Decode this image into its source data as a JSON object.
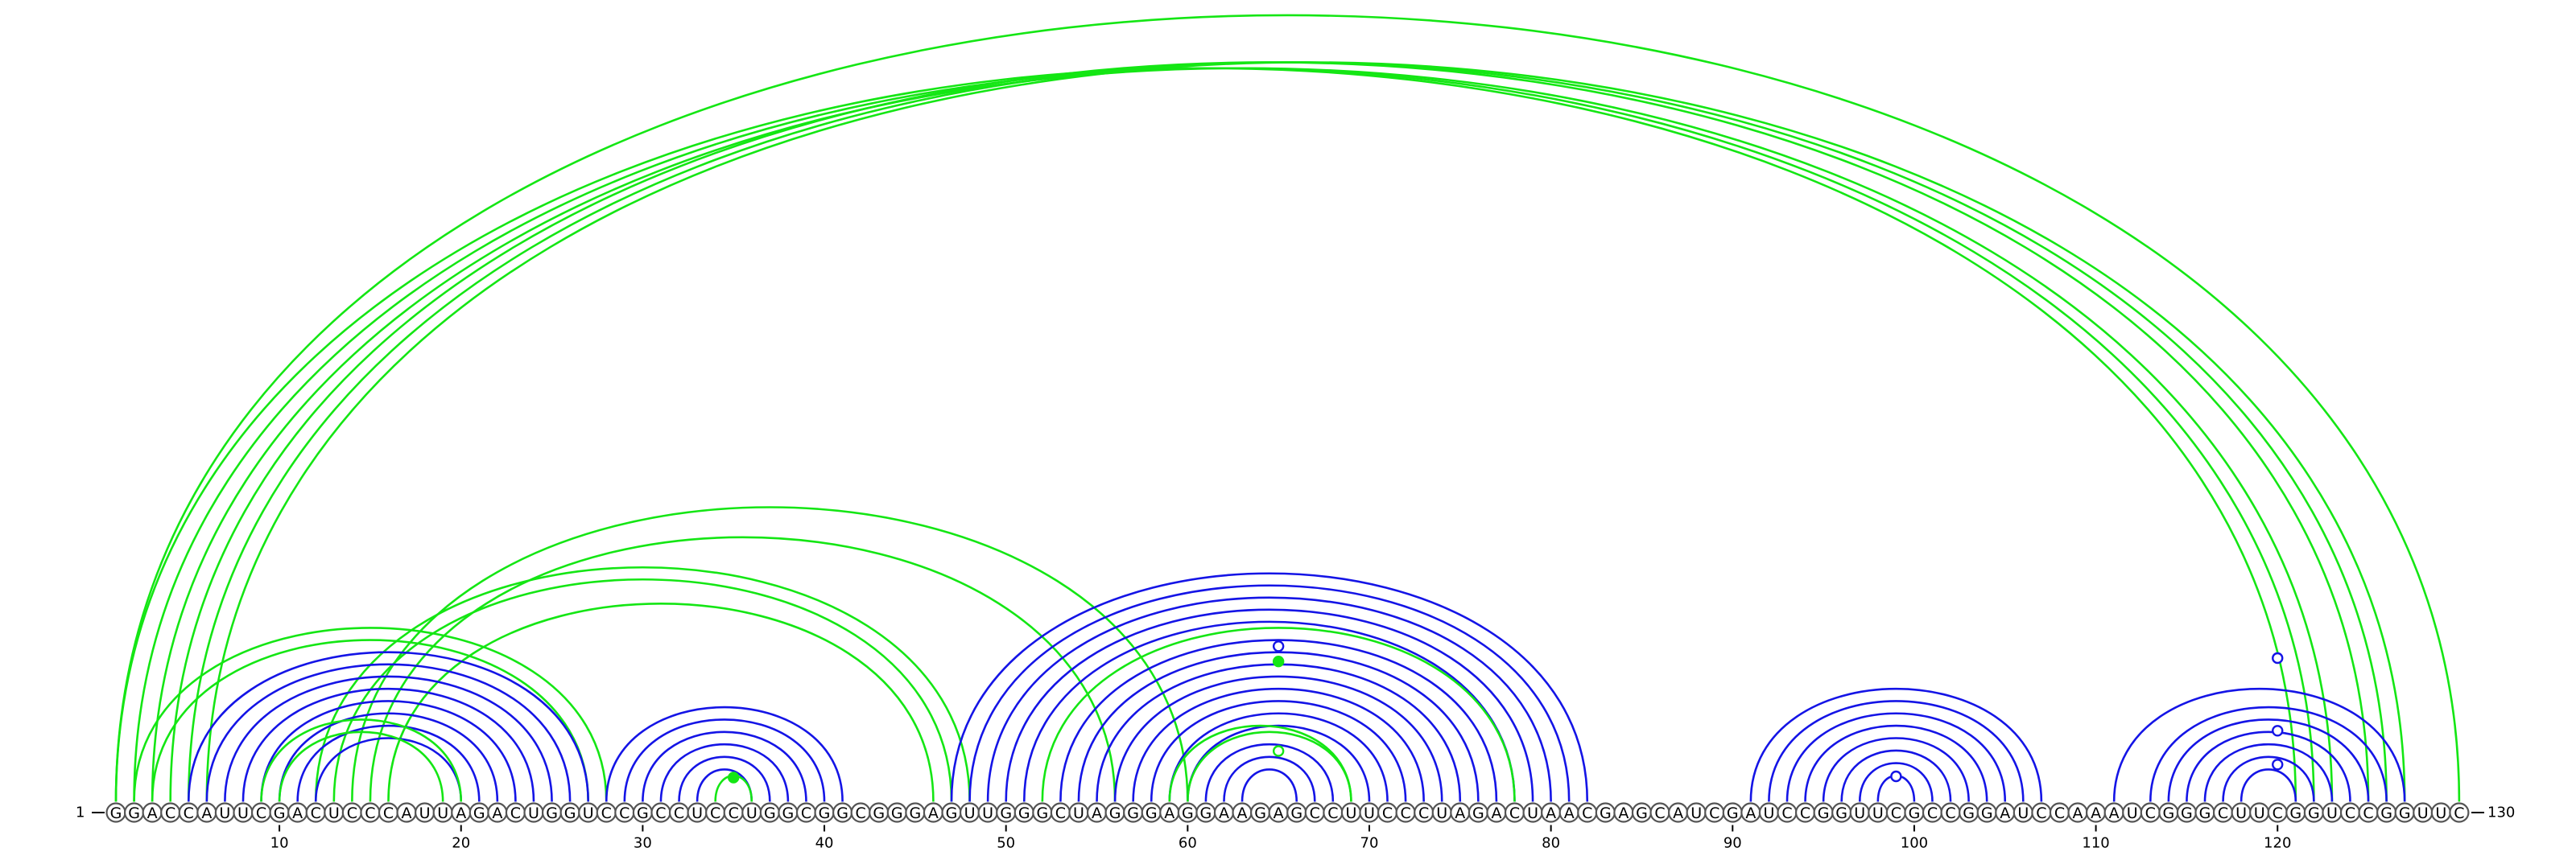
{
  "sequence": "GGACCAUUCGACUCCCAUUAGACUGGUCCGCCUCCUGGCGGCGGGAGUUGGGCUAGGGAGGAAGAGCCUUCCCUAGACUAACGAGCAUCGAUCCGGUUCGCCGGAUCCAAAUCGGGCUUCGGUCCGGUUC",
  "start_label": "1",
  "end_label": "130",
  "ticks": [
    10,
    20,
    30,
    40,
    50,
    60,
    70,
    80,
    90,
    100,
    110,
    120
  ],
  "colors": {
    "blue": "#1414e6",
    "green": "#14e614"
  },
  "arcs": [
    {
      "color": "green",
      "pairs": [
        [
          1,
          121
        ],
        [
          2,
          122
        ],
        [
          3,
          123
        ],
        [
          4,
          125
        ],
        [
          5,
          126
        ],
        [
          6,
          127
        ],
        [
          1,
          130
        ]
      ]
    },
    {
      "color": "green",
      "pairs": [
        [
          2,
          28
        ],
        [
          3,
          27
        ],
        [
          12,
          48
        ],
        [
          13,
          47
        ],
        [
          14,
          60
        ],
        [
          15,
          56
        ],
        [
          16,
          46
        ]
      ]
    },
    {
      "color": "blue",
      "pairs": [
        [
          5,
          27
        ],
        [
          6,
          26
        ],
        [
          7,
          25
        ],
        [
          8,
          24
        ],
        [
          9,
          23
        ],
        [
          10,
          22
        ],
        [
          11,
          21
        ],
        [
          12,
          20
        ]
      ]
    },
    {
      "color": "green",
      "pairs": [
        [
          9,
          20
        ],
        [
          10,
          19
        ]
      ]
    },
    {
      "color": "blue",
      "pairs": [
        [
          28,
          41
        ],
        [
          29,
          40
        ],
        [
          30,
          39
        ],
        [
          31,
          38
        ],
        [
          32,
          37
        ],
        [
          33,
          36
        ]
      ]
    },
    {
      "color": "green",
      "pairs": [
        [
          34,
          36
        ]
      ]
    },
    {
      "color": "blue",
      "pairs": [
        [
          47,
          82
        ],
        [
          48,
          81
        ],
        [
          49,
          80
        ],
        [
          50,
          79
        ],
        [
          51,
          78
        ],
        [
          53,
          77
        ],
        [
          54,
          76
        ],
        [
          55,
          75
        ],
        [
          56,
          74
        ],
        [
          57,
          73
        ],
        [
          58,
          72
        ],
        [
          59,
          71
        ],
        [
          60,
          70
        ],
        [
          61,
          68
        ],
        [
          62,
          67
        ],
        [
          63,
          66
        ]
      ]
    },
    {
      "color": "green",
      "pairs": [
        [
          52,
          78
        ],
        [
          59,
          69
        ],
        [
          60,
          69
        ]
      ]
    },
    {
      "color": "blue",
      "pairs": [
        [
          91,
          107
        ],
        [
          92,
          106
        ],
        [
          93,
          105
        ],
        [
          94,
          104
        ],
        [
          95,
          103
        ],
        [
          96,
          102
        ],
        [
          97,
          101
        ],
        [
          98,
          100
        ]
      ]
    },
    {
      "color": "blue",
      "pairs": [
        [
          111,
          127
        ],
        [
          113,
          126
        ],
        [
          114,
          125
        ],
        [
          115,
          124
        ],
        [
          116,
          123
        ],
        [
          117,
          122
        ],
        [
          118,
          121
        ]
      ]
    }
  ],
  "markers": [
    {
      "color": "blue",
      "pos": 65,
      "level": 0.92,
      "filled": false
    },
    {
      "color": "green",
      "pos": 65,
      "level": 0.83,
      "filled": true
    },
    {
      "color": "green",
      "pos": 65,
      "level": 0.3,
      "filled": false
    },
    {
      "color": "green",
      "pos": 35,
      "level": 0.1,
      "filled": true
    },
    {
      "color": "blue",
      "pos": 99,
      "level": 0.15,
      "filled": false
    },
    {
      "color": "blue",
      "pos": 120,
      "level": 0.85,
      "filled": false
    },
    {
      "color": "blue",
      "pos": 120,
      "level": 0.42,
      "filled": false
    },
    {
      "color": "blue",
      "pos": 120,
      "level": 0.22,
      "filled": false
    }
  ]
}
